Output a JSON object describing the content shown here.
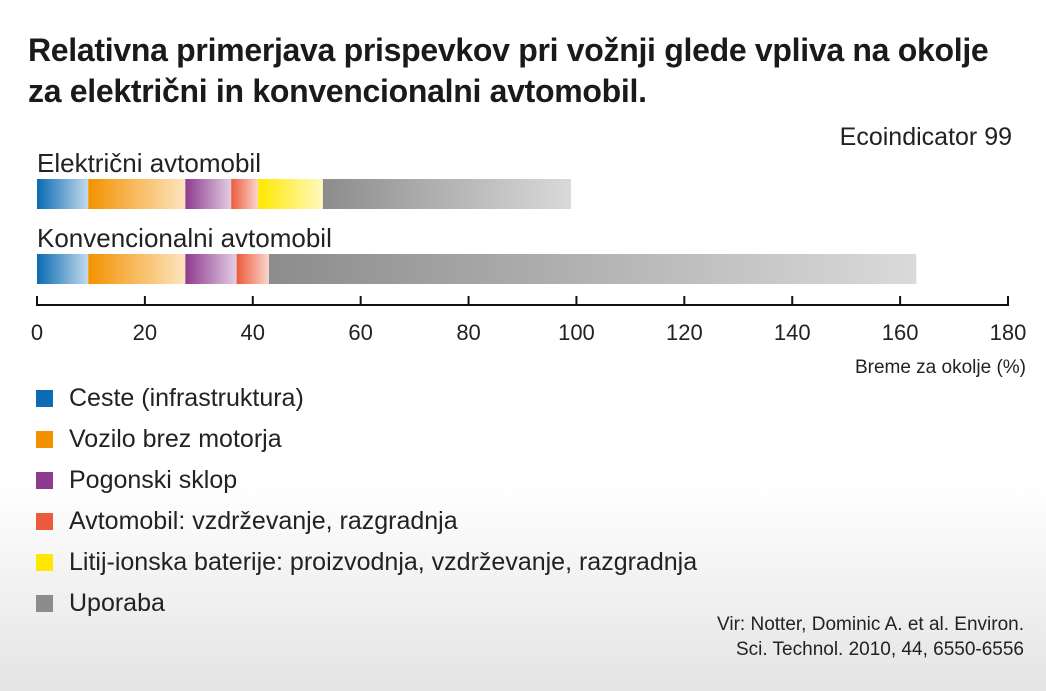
{
  "title": "Relativna primerjava prispevkov pri vožnji glede vpliva na okolje za električni in konvencionalni avtomobil.",
  "method_note": "Ecoindicator 99",
  "source": {
    "line1": "Vir: Notter, Dominic A. et al. Environ.",
    "line2": "Sci. Technol. 2010, 44, 6550-6556"
  },
  "chart_data": {
    "type": "bar",
    "orientation": "horizontal",
    "stacked": true,
    "title": "Relativna primerjava prispevkov pri vožnji glede vpliva na okolje za električni in konvencionalni avtomobil.",
    "xlabel": "Breme za okolje (%)",
    "xlim": [
      0,
      180
    ],
    "xticks": [
      0,
      20,
      40,
      60,
      80,
      100,
      120,
      140,
      160,
      180
    ],
    "categories": [
      "Električni avtomobil",
      "Konvencionalni avtomobil"
    ],
    "series": [
      {
        "name": "Ceste (infrastruktura)",
        "color": "#0b6bb3",
        "values": [
          9.5,
          9.5
        ]
      },
      {
        "name": "Vozilo brez motorja",
        "color": "#f39200",
        "values": [
          18,
          18
        ]
      },
      {
        "name": "Pogonski sklop",
        "color": "#8e3b8f",
        "values": [
          8.5,
          9.5
        ]
      },
      {
        "name": "Avtomobil: vzdrževanje, razgradnja",
        "color": "#ec5a3c",
        "values": [
          5,
          6
        ]
      },
      {
        "name": "Litij-ionska baterije: proizvodnja, vzdrževanje, razgradnja",
        "color": "#ffe800",
        "values": [
          12,
          0
        ]
      },
      {
        "name": "Uporaba",
        "color": "#8c8c8c",
        "values": [
          46,
          120
        ]
      }
    ],
    "legend": "bottom-left",
    "grid": false
  }
}
